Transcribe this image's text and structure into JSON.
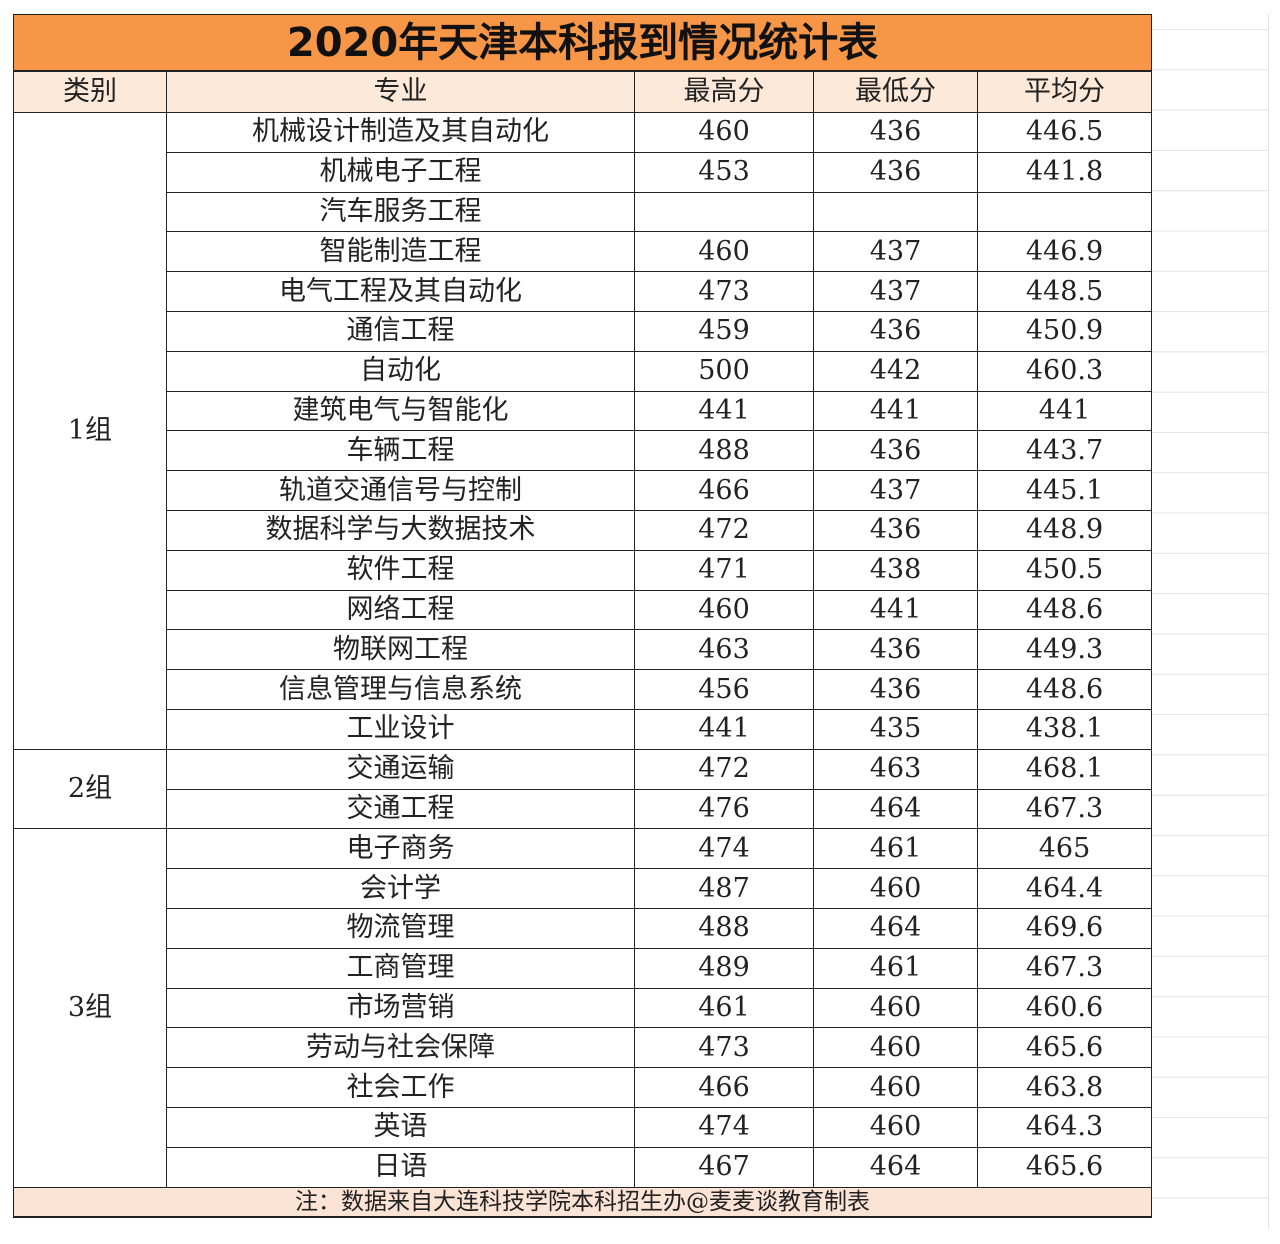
{
  "title": "2020年天津本科报到情况统计表",
  "headers": [
    "类别",
    "专业",
    "最高分",
    "最低分",
    "平均分"
  ],
  "groups": [
    {
      "name": "1组",
      "rows": [
        [
          "机械设计制造及其自动化",
          "460",
          "436",
          "446.5"
        ],
        [
          "机械电子工程",
          "453",
          "436",
          "441.8"
        ],
        [
          "汽车服务工程",
          "",
          "",
          ""
        ],
        [
          "智能制造工程",
          "460",
          "437",
          "446.9"
        ],
        [
          "电气工程及其自动化",
          "473",
          "437",
          "448.5"
        ],
        [
          "通信工程",
          "459",
          "436",
          "450.9"
        ],
        [
          "自动化",
          "500",
          "442",
          "460.3"
        ],
        [
          "建筑电气与智能化",
          "441",
          "441",
          "441"
        ],
        [
          "车辆工程",
          "488",
          "436",
          "443.7"
        ],
        [
          "轨道交通信号与控制",
          "466",
          "437",
          "445.1"
        ],
        [
          "数据科学与大数据技术",
          "472",
          "436",
          "448.9"
        ],
        [
          "软件工程",
          "471",
          "438",
          "450.5"
        ],
        [
          "网络工程",
          "460",
          "441",
          "448.6"
        ],
        [
          "物联网工程",
          "463",
          "436",
          "449.3"
        ],
        [
          "信息管理与信息系统",
          "456",
          "436",
          "448.6"
        ],
        [
          "工业设计",
          "441",
          "435",
          "438.1"
        ]
      ]
    },
    {
      "name": "2组",
      "rows": [
        [
          "交通运输",
          "472",
          "463",
          "468.1"
        ],
        [
          "交通工程",
          "476",
          "464",
          "467.3"
        ]
      ]
    },
    {
      "name": "3组",
      "rows": [
        [
          "电子商务",
          "474",
          "461",
          "465"
        ],
        [
          "会计学",
          "487",
          "460",
          "464.4"
        ],
        [
          "物流管理",
          "488",
          "464",
          "469.6"
        ],
        [
          "工商管理",
          "489",
          "461",
          "467.3"
        ],
        [
          "市场营销",
          "461",
          "460",
          "460.6"
        ],
        [
          "劳动与社会保障",
          "473",
          "460",
          "465.6"
        ],
        [
          "社会工作",
          "466",
          "460",
          "463.8"
        ],
        [
          "英语",
          "474",
          "460",
          "464.3"
        ],
        [
          "日语",
          "467",
          "464",
          "465.6"
        ]
      ]
    }
  ],
  "footnote": "注：数据来自大连科技学院本科招生办@麦麦谈教育制表",
  "colors": {
    "title_bg": "#f79646",
    "header_bg": "#fde9d9",
    "footer_bg": "#fbe3d6"
  }
}
